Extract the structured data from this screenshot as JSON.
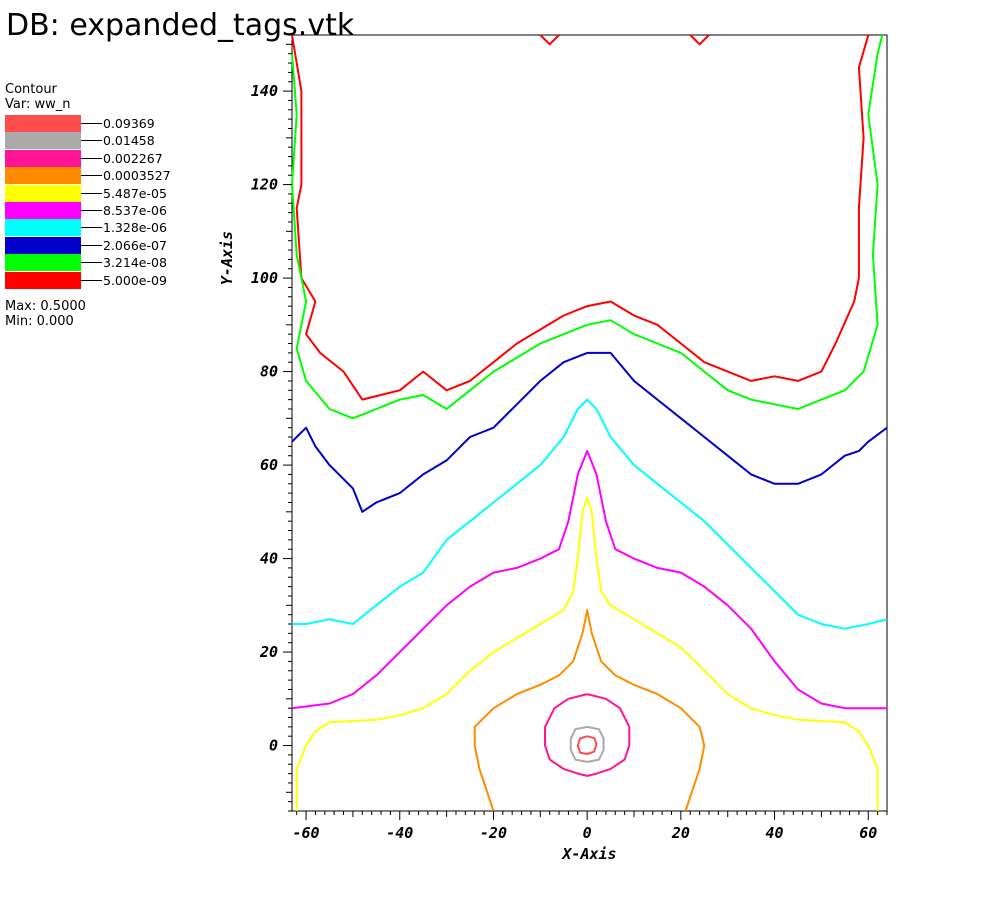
{
  "title": "DB: expanded_tags.vtk",
  "legend": {
    "heading": "Contour",
    "variable": "Var: ww_n",
    "entries": [
      {
        "label": "0.09369",
        "color": "#ff4c4c"
      },
      {
        "label": "0.01458",
        "color": "#aaaaaa"
      },
      {
        "label": "0.002267",
        "color": "#ff1493"
      },
      {
        "label": "0.0003527",
        "color": "#ff8c00"
      },
      {
        "label": "5.487e-05",
        "color": "#ffff00"
      },
      {
        "label": "8.537e-06",
        "color": "#ff00ff"
      },
      {
        "label": "1.328e-06",
        "color": "#00ffff"
      },
      {
        "label": "2.066e-07",
        "color": "#0000cc"
      },
      {
        "label": "3.214e-08",
        "color": "#00ff00"
      },
      {
        "label": "5.000e-09",
        "color": "#ff0000"
      }
    ],
    "max": "Max: 0.5000",
    "min": "Min:  0.000"
  },
  "chart_data": {
    "type": "line",
    "xlabel": "X-Axis",
    "ylabel": "Y-Axis",
    "xlim": [
      -63,
      64
    ],
    "ylim": [
      -14,
      152
    ],
    "xticks": [
      -60,
      -40,
      -20,
      0,
      20,
      40,
      60
    ],
    "yticks": [
      0,
      20,
      40,
      60,
      80,
      100,
      120,
      140
    ],
    "series": [
      {
        "name": "5.000e-09",
        "color": "#ff0000",
        "segments": [
          [
            [
              -63,
              152
            ],
            [
              -61,
              140
            ],
            [
              -61,
              120
            ],
            [
              -62,
              115
            ],
            [
              -61,
              100
            ],
            [
              -58,
              95
            ],
            [
              -60,
              88
            ],
            [
              -57,
              84
            ],
            [
              -52,
              80
            ],
            [
              -50,
              77
            ],
            [
              -48,
              74
            ],
            [
              -40,
              76
            ],
            [
              -35,
              80
            ],
            [
              -30,
              76
            ],
            [
              -25,
              78
            ],
            [
              -20,
              82
            ],
            [
              -15,
              86
            ],
            [
              -10,
              89
            ],
            [
              -5,
              92
            ],
            [
              0,
              94
            ],
            [
              5,
              95
            ],
            [
              10,
              92
            ],
            [
              15,
              90
            ],
            [
              20,
              86
            ],
            [
              25,
              82
            ],
            [
              30,
              80
            ],
            [
              35,
              78
            ],
            [
              40,
              79
            ],
            [
              45,
              78
            ],
            [
              50,
              80
            ],
            [
              53,
              86
            ],
            [
              57,
              95
            ],
            [
              58,
              100
            ],
            [
              58,
              115
            ],
            [
              59,
              130
            ],
            [
              58,
              145
            ],
            [
              60,
              152
            ]
          ],
          [
            [
              -10,
              152
            ],
            [
              -8,
              150
            ],
            [
              -6,
              152
            ]
          ],
          [
            [
              22,
              152
            ],
            [
              24,
              150
            ],
            [
              26,
              152
            ]
          ]
        ]
      },
      {
        "name": "3.214e-08",
        "color": "#00ff00",
        "segments": [
          [
            [
              -63,
              148
            ],
            [
              -62,
              135
            ],
            [
              -63,
              120
            ],
            [
              -62,
              105
            ],
            [
              -60,
              95
            ],
            [
              -62,
              85
            ],
            [
              -60,
              78
            ],
            [
              -55,
              72
            ],
            [
              -50,
              70
            ],
            [
              -45,
              72
            ],
            [
              -40,
              74
            ],
            [
              -35,
              75
            ],
            [
              -30,
              72
            ],
            [
              -25,
              76
            ],
            [
              -20,
              80
            ],
            [
              -15,
              83
            ],
            [
              -10,
              86
            ],
            [
              -5,
              88
            ],
            [
              0,
              90
            ],
            [
              5,
              91
            ],
            [
              10,
              88
            ],
            [
              15,
              86
            ],
            [
              20,
              84
            ],
            [
              25,
              80
            ],
            [
              30,
              76
            ],
            [
              35,
              74
            ],
            [
              40,
              73
            ],
            [
              45,
              72
            ],
            [
              50,
              74
            ],
            [
              55,
              76
            ],
            [
              59,
              80
            ],
            [
              62,
              90
            ],
            [
              61,
              105
            ],
            [
              62,
              120
            ],
            [
              60,
              135
            ],
            [
              62,
              148
            ],
            [
              63,
              152
            ]
          ]
        ]
      },
      {
        "name": "2.066e-07",
        "color": "#0000cc",
        "segments": [
          [
            [
              -63,
              65
            ],
            [
              -60,
              68
            ],
            [
              -58,
              64
            ],
            [
              -55,
              60
            ],
            [
              -50,
              55
            ],
            [
              -48,
              50
            ],
            [
              -45,
              52
            ],
            [
              -40,
              54
            ],
            [
              -35,
              58
            ],
            [
              -30,
              61
            ],
            [
              -25,
              66
            ],
            [
              -20,
              68
            ],
            [
              -15,
              73
            ],
            [
              -10,
              78
            ],
            [
              -5,
              82
            ],
            [
              0,
              84
            ],
            [
              5,
              84
            ],
            [
              10,
              78
            ],
            [
              15,
              74
            ],
            [
              20,
              70
            ],
            [
              25,
              66
            ],
            [
              30,
              62
            ],
            [
              35,
              58
            ],
            [
              40,
              56
            ],
            [
              45,
              56
            ],
            [
              50,
              58
            ],
            [
              55,
              62
            ],
            [
              58,
              63
            ],
            [
              60,
              65
            ],
            [
              64,
              68
            ]
          ]
        ]
      },
      {
        "name": "1.328e-06",
        "color": "#00ffff",
        "segments": [
          [
            [
              -63,
              26
            ],
            [
              -60,
              26
            ],
            [
              -55,
              27
            ],
            [
              -50,
              26
            ],
            [
              -45,
              30
            ],
            [
              -40,
              34
            ],
            [
              -35,
              37
            ],
            [
              -30,
              44
            ],
            [
              -25,
              48
            ],
            [
              -20,
              52
            ],
            [
              -15,
              56
            ],
            [
              -10,
              60
            ],
            [
              -5,
              66
            ],
            [
              -2,
              72
            ],
            [
              0,
              74
            ],
            [
              2,
              72
            ],
            [
              5,
              66
            ],
            [
              10,
              60
            ],
            [
              15,
              56
            ],
            [
              20,
              52
            ],
            [
              25,
              48
            ],
            [
              30,
              43
            ],
            [
              35,
              38
            ],
            [
              40,
              33
            ],
            [
              45,
              28
            ],
            [
              50,
              26
            ],
            [
              55,
              25
            ],
            [
              60,
              26
            ],
            [
              64,
              27
            ]
          ]
        ]
      },
      {
        "name": "8.537e-06",
        "color": "#ff00ff",
        "segments": [
          [
            [
              -63,
              8
            ],
            [
              -55,
              9
            ],
            [
              -50,
              11
            ],
            [
              -45,
              15
            ],
            [
              -40,
              20
            ],
            [
              -35,
              25
            ],
            [
              -30,
              30
            ],
            [
              -25,
              34
            ],
            [
              -20,
              37
            ],
            [
              -15,
              38
            ],
            [
              -10,
              40
            ],
            [
              -6,
              42
            ],
            [
              -4,
              48
            ],
            [
              -2,
              58
            ],
            [
              0,
              63
            ],
            [
              2,
              58
            ],
            [
              4,
              48
            ],
            [
              6,
              42
            ],
            [
              10,
              40
            ],
            [
              15,
              38
            ],
            [
              20,
              37
            ],
            [
              25,
              34
            ],
            [
              30,
              30
            ],
            [
              35,
              25
            ],
            [
              40,
              18
            ],
            [
              45,
              12
            ],
            [
              50,
              9
            ],
            [
              55,
              8
            ],
            [
              64,
              8
            ]
          ]
        ]
      },
      {
        "name": "5.487e-05",
        "color": "#ffff00",
        "segments": [
          [
            [
              -62,
              -14
            ],
            [
              -62,
              -5
            ],
            [
              -60,
              0
            ],
            [
              -58,
              3
            ],
            [
              -55,
              5
            ],
            [
              -45,
              5.5
            ],
            [
              -40,
              6.5
            ],
            [
              -35,
              8
            ],
            [
              -30,
              11
            ],
            [
              -25,
              16
            ],
            [
              -20,
              20
            ],
            [
              -15,
              23
            ],
            [
              -10,
              26
            ],
            [
              -5,
              29
            ],
            [
              -3,
              33
            ],
            [
              -2,
              40
            ],
            [
              -1,
              50
            ],
            [
              0,
              53
            ],
            [
              1,
              50
            ],
            [
              2,
              40
            ],
            [
              3,
              33
            ],
            [
              5,
              30
            ],
            [
              10,
              27
            ],
            [
              15,
              24
            ],
            [
              20,
              21
            ],
            [
              25,
              16
            ],
            [
              30,
              11
            ],
            [
              35,
              8
            ],
            [
              40,
              6.5
            ],
            [
              45,
              5.5
            ],
            [
              55,
              5
            ],
            [
              58,
              3
            ],
            [
              60,
              0
            ],
            [
              62,
              -5
            ],
            [
              62,
              -14
            ]
          ]
        ]
      },
      {
        "name": "0.0003527",
        "color": "#ff8c00",
        "segments": [
          [
            [
              -20,
              -14
            ],
            [
              -23,
              -5
            ],
            [
              -24,
              0
            ],
            [
              -24,
              4
            ],
            [
              -20,
              8
            ],
            [
              -15,
              11
            ],
            [
              -10,
              13
            ],
            [
              -6,
              15
            ],
            [
              -3,
              18
            ],
            [
              -1,
              24
            ],
            [
              0,
              29
            ],
            [
              1,
              24
            ],
            [
              3,
              18
            ],
            [
              6,
              15
            ],
            [
              10,
              13
            ],
            [
              15,
              11
            ],
            [
              20,
              8
            ],
            [
              24,
              4
            ],
            [
              25,
              0
            ],
            [
              24,
              -5
            ],
            [
              21,
              -14
            ]
          ]
        ]
      },
      {
        "name": "0.002267",
        "color": "#ff1493",
        "segments": [
          [
            [
              0,
              11
            ],
            [
              -4,
              10
            ],
            [
              -7,
              8
            ],
            [
              -9,
              4
            ],
            [
              -9,
              0
            ],
            [
              -8,
              -3
            ],
            [
              -5,
              -5
            ],
            [
              -2,
              -6
            ],
            [
              0,
              -6.5
            ],
            [
              2,
              -6
            ],
            [
              5,
              -5
            ],
            [
              8,
              -3
            ],
            [
              9,
              0
            ],
            [
              9,
              4
            ],
            [
              7,
              8
            ],
            [
              4,
              10
            ],
            [
              0,
              11
            ]
          ]
        ]
      },
      {
        "name": "0.01458",
        "color": "#aaaaaa",
        "segments": [
          [
            [
              0,
              4
            ],
            [
              -2.5,
              3.5
            ],
            [
              -3.5,
              1.5
            ],
            [
              -3.5,
              -1
            ],
            [
              -2.5,
              -3
            ],
            [
              0,
              -3.5
            ],
            [
              2.5,
              -3
            ],
            [
              3.5,
              -1
            ],
            [
              3.5,
              1.5
            ],
            [
              2.5,
              3.5
            ],
            [
              0,
              4
            ]
          ]
        ]
      },
      {
        "name": "0.09369",
        "color": "#ff4c4c",
        "segments": [
          [
            [
              0,
              2
            ],
            [
              -1.5,
              1.5
            ],
            [
              -2,
              0
            ],
            [
              -1.5,
              -1.5
            ],
            [
              0,
              -1.8
            ],
            [
              1.5,
              -1.3
            ],
            [
              2,
              0.3
            ],
            [
              1.5,
              1.6
            ],
            [
              0,
              2
            ]
          ]
        ]
      }
    ]
  }
}
